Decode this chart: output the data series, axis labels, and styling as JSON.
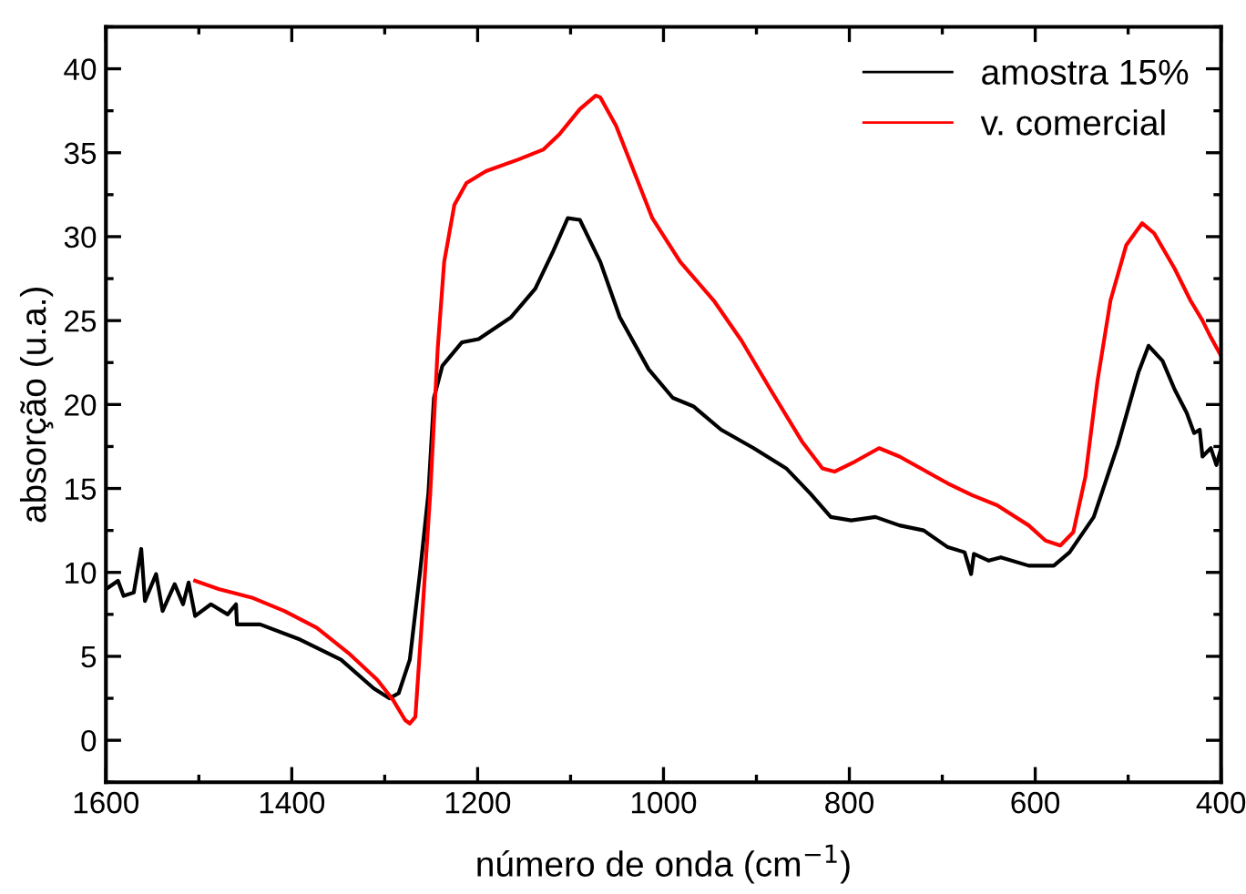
{
  "chart_data": {
    "type": "line",
    "xlabel": "número de onda (cm$^{−1}$)",
    "ylabel": "absorção (u.a.)",
    "xlim": [
      1600,
      400
    ],
    "xticks": [
      1600,
      1400,
      1200,
      1000,
      800,
      600,
      400
    ],
    "ylim": [
      -2.5,
      42.5
    ],
    "yticks": [
      0,
      5,
      10,
      15,
      20,
      25,
      30,
      35,
      40
    ],
    "grid": false,
    "legend": "top right",
    "marker": "none",
    "line_style": "solid",
    "series": [
      {
        "name": "amostra 15%",
        "color": "#000000",
        "x": [
          1600,
          1587,
          1581,
          1570,
          1562,
          1558,
          1546,
          1539,
          1526,
          1517,
          1511,
          1504,
          1487,
          1469,
          1460,
          1459,
          1434,
          1391,
          1347,
          1312,
          1295,
          1285,
          1273,
          1262,
          1253,
          1247,
          1238,
          1217,
          1199,
          1164,
          1138,
          1119,
          1103,
          1090,
          1068,
          1047,
          1016,
          990,
          968,
          938,
          903,
          868,
          842,
          820,
          798,
          772,
          746,
          720,
          694,
          676,
          669,
          666,
          650,
          637,
          607,
          580,
          563,
          537,
          511,
          489,
          478,
          463,
          450,
          437,
          429,
          423,
          420,
          411,
          405,
          400
        ],
        "values": [
          9.0,
          9.5,
          8.6,
          8.8,
          11.4,
          8.3,
          9.9,
          7.7,
          9.3,
          8.1,
          9.4,
          7.4,
          8.1,
          7.5,
          8.1,
          6.9,
          6.9,
          6.0,
          4.8,
          3.1,
          2.5,
          2.8,
          4.8,
          10.0,
          14.7,
          20.4,
          22.3,
          23.7,
          23.9,
          25.2,
          26.9,
          29.1,
          31.1,
          31.0,
          28.5,
          25.2,
          22.1,
          20.4,
          19.9,
          18.5,
          17.4,
          16.2,
          14.7,
          13.3,
          13.1,
          13.3,
          12.8,
          12.5,
          11.5,
          11.2,
          9.9,
          11.1,
          10.7,
          10.9,
          10.4,
          10.4,
          11.2,
          13.3,
          17.6,
          21.9,
          23.5,
          22.6,
          20.9,
          19.5,
          18.3,
          18.5,
          16.9,
          17.4,
          16.4,
          17.4
        ]
      },
      {
        "name": "v. comercial",
        "color": "#ff0000",
        "x": [
          1504,
          1478,
          1443,
          1408,
          1373,
          1339,
          1308,
          1291,
          1278,
          1273,
          1267,
          1260,
          1251,
          1243,
          1236,
          1225,
          1212,
          1191,
          1156,
          1129,
          1112,
          1090,
          1073,
          1068,
          1051,
          1034,
          1012,
          982,
          946,
          916,
          885,
          851,
          829,
          816,
          794,
          768,
          746,
          720,
          694,
          668,
          641,
          607,
          589,
          573,
          559,
          546,
          533,
          519,
          502,
          485,
          472,
          450,
          433,
          420,
          411,
          400
        ],
        "values": [
          9.5,
          9.0,
          8.5,
          7.7,
          6.7,
          5.2,
          3.6,
          2.4,
          1.2,
          1.0,
          1.4,
          7.1,
          14.7,
          23.3,
          28.5,
          31.9,
          33.2,
          33.9,
          34.6,
          35.2,
          36.1,
          37.6,
          38.4,
          38.3,
          36.6,
          34.2,
          31.1,
          28.5,
          26.2,
          23.8,
          20.9,
          17.8,
          16.2,
          16.0,
          16.6,
          17.4,
          16.9,
          16.1,
          15.3,
          14.6,
          14.0,
          12.8,
          11.9,
          11.6,
          12.4,
          15.7,
          21.4,
          26.2,
          29.5,
          30.8,
          30.2,
          28.1,
          26.2,
          25.0,
          24.0,
          22.9
        ]
      }
    ]
  }
}
